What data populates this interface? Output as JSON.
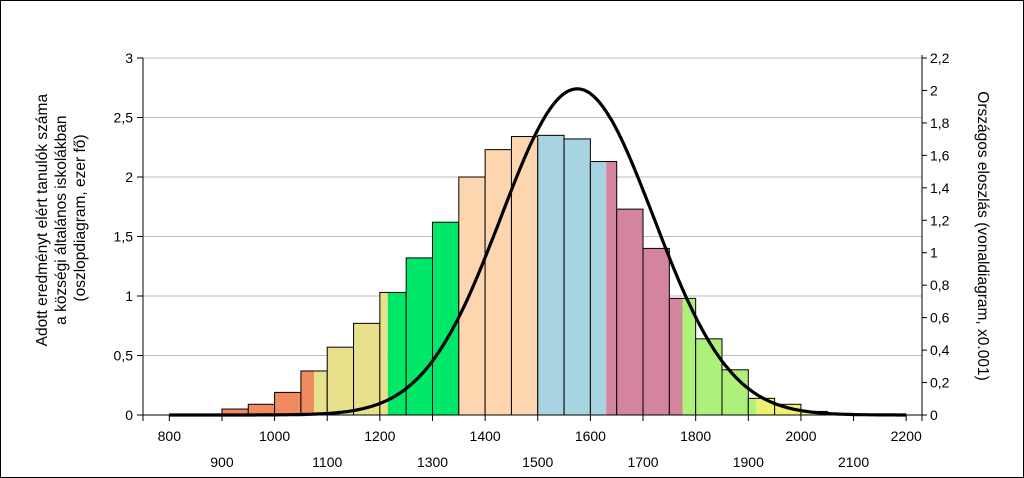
{
  "chart_data": {
    "type": "bar",
    "title": "",
    "ylabel_lines": [
      "Adott eredményt elért tanulók száma",
      "a községi általános iskolákban",
      "(oszlopdiagram, ezer fő)"
    ],
    "y2label": "Országos eloszlás (vonaldiagram, x0.001)",
    "xlim": [
      750,
      2230
    ],
    "ylim": [
      0,
      3
    ],
    "y2lim": [
      0,
      2.2
    ],
    "x_ticks_row1": [
      "800",
      "1000",
      "1200",
      "1400",
      "1600",
      "1800",
      "2000",
      "2200"
    ],
    "x_ticks_row2": [
      "900",
      "1100",
      "1300",
      "1500",
      "1700",
      "1900",
      "2100"
    ],
    "y_ticks": [
      "0",
      "0,5",
      "1",
      "1,5",
      "2",
      "2,5",
      "3"
    ],
    "y2_ticks": [
      "0",
      "0,2",
      "0,4",
      "0,6",
      "0,8",
      "1",
      "1,2",
      "1,4",
      "1,6",
      "1,8",
      "2",
      "2,2"
    ],
    "bins": [
      {
        "start": 800,
        "width": 50,
        "value": 0.003,
        "fill": "#ffffff"
      },
      {
        "start": 850,
        "width": 50,
        "value": 0.008,
        "fill": "#ffffff"
      },
      {
        "start": 900,
        "width": 50,
        "value": 0.05,
        "fill": "#f08a60"
      },
      {
        "start": 950,
        "width": 50,
        "value": 0.09,
        "fill": "#f08a60"
      },
      {
        "start": 1000,
        "width": 50,
        "value": 0.19,
        "fill": "#f08a60"
      },
      {
        "start": 1050,
        "width": 50,
        "value": 0.37,
        "fill": "#f08a60",
        "split": 1075,
        "fill2": "#e8e08a"
      },
      {
        "start": 1100,
        "width": 50,
        "value": 0.57,
        "fill": "#e8e08a"
      },
      {
        "start": 1150,
        "width": 50,
        "value": 0.77,
        "fill": "#e8e08a"
      },
      {
        "start": 1200,
        "width": 50,
        "value": 1.03,
        "fill": "#e8e08a",
        "split": 1215,
        "fill2": "#00e868"
      },
      {
        "start": 1250,
        "width": 50,
        "value": 1.32,
        "fill": "#00e868"
      },
      {
        "start": 1300,
        "width": 50,
        "value": 1.62,
        "fill": "#00e868"
      },
      {
        "start": 1350,
        "width": 50,
        "value": 2.0,
        "fill": "#fdd6b0"
      },
      {
        "start": 1400,
        "width": 50,
        "value": 2.23,
        "fill": "#fdd6b0"
      },
      {
        "start": 1450,
        "width": 50,
        "value": 2.34,
        "fill": "#fdd6b0",
        "split": 1500,
        "fill2": "#a8d3e0"
      },
      {
        "start": 1500,
        "width": 50,
        "value": 2.35,
        "fill": "#a8d3e0"
      },
      {
        "start": 1550,
        "width": 50,
        "value": 2.32,
        "fill": "#a8d3e0"
      },
      {
        "start": 1600,
        "width": 50,
        "value": 2.13,
        "fill": "#a8d3e0",
        "split": 1630,
        "fill2": "#d4849c"
      },
      {
        "start": 1650,
        "width": 50,
        "value": 1.73,
        "fill": "#d4849c"
      },
      {
        "start": 1700,
        "width": 50,
        "value": 1.4,
        "fill": "#d4849c"
      },
      {
        "start": 1750,
        "width": 50,
        "value": 0.98,
        "fill": "#d4849c",
        "split": 1775,
        "fill2": "#adf07a"
      },
      {
        "start": 1800,
        "width": 50,
        "value": 0.64,
        "fill": "#adf07a"
      },
      {
        "start": 1850,
        "width": 50,
        "value": 0.38,
        "fill": "#adf07a"
      },
      {
        "start": 1900,
        "width": 50,
        "value": 0.14,
        "fill": "#adf07a",
        "split": 1915,
        "fill2": "#f0f070"
      },
      {
        "start": 1950,
        "width": 50,
        "value": 0.09,
        "fill": "#f0f070"
      },
      {
        "start": 2000,
        "width": 50,
        "value": 0.03,
        "fill": "#f0f070"
      },
      {
        "start": 2050,
        "width": 50,
        "value": 0.01,
        "fill": "#f0f070"
      },
      {
        "start": 2100,
        "width": 50,
        "value": 0.004,
        "fill": "#ffffff"
      },
      {
        "start": 2150,
        "width": 50,
        "value": 0.002,
        "fill": "#ffffff"
      }
    ],
    "series": [
      {
        "type": "line",
        "axis": "y2",
        "distribution": "normal",
        "mean": 1575,
        "sd": 145,
        "peak": 2.01,
        "x_range": [
          800,
          2200
        ],
        "color": "#000000"
      }
    ],
    "grid": true
  }
}
